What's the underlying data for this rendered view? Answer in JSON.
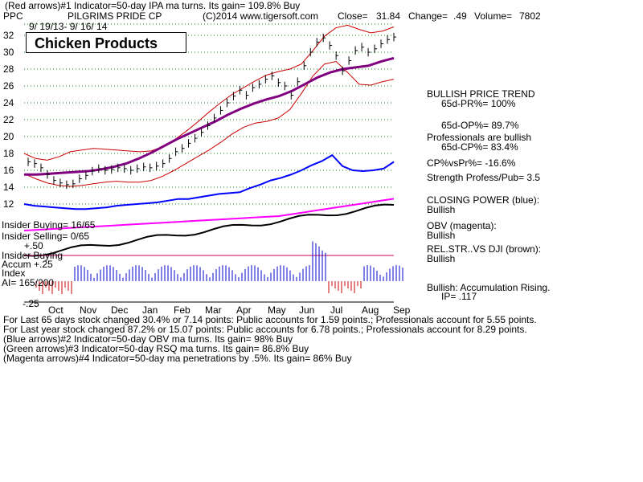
{
  "header": {
    "line1": "(Red arrows)#1 Indicator=50-day IPA ma turns. Its gain= 109.8% Buy",
    "ticker": "PPC",
    "company": "PILGRIMS PRIDE CP",
    "copyright": "(C)2014 www.tigersoft.com",
    "close_label": "Close=",
    "close_value": "31.84",
    "change_label": "Change=",
    "change_value": ".49",
    "volume_label": "Volume=",
    "volume_value": "7802",
    "date_range": "9/ 19/13- 9/ 16/ 14"
  },
  "title_box": "Chicken Products",
  "left_labels": {
    "insider_buying_count": "Insider Buying= 16/65",
    "insider_selling_count": "Insider Selling= 0/65",
    "plus50": "+.50",
    "insider_buying": "Insider Buying",
    "accum": "Accum  +.25",
    "index": "Index",
    "ai": "AI= 165/200",
    "minus25": "-.25"
  },
  "right_panel": {
    "trend": "BULLISH PRICE TREND",
    "pr": "65d-PR%= 100%",
    "op": "65d-OP%= 89.7%",
    "professionals": "Professionals are bullish",
    "cp": "65d-CP%= 83.4%",
    "cpvspr": "CP%vsPr%= -16.6%",
    "strength": "Strength Profess/Pub= 3.5",
    "closing_power": "CLOSING POWER (blue):",
    "closing_power_v": "Bullish",
    "obv": "OBV (magenta):",
    "obv_v": "Bullish",
    "relstr": "REL.STR..VS DJI (brown):",
    "relstr_v": "Bullish",
    "accum": "Bullish: Accumulation Rising.",
    "ip": "IP=  .117"
  },
  "footer": {
    "l1": "For Last 65 days stock changed  30.4% or  7.14 points:  Public accounts for  1.59 points.;  Professionals account for  5.55 points.",
    "l2": "For Last year stock changed  87.2% or  15.07 points:  Public accounts for  6.78 points.;  Professionals account for  8.29 points.",
    "l3": "(Blue arrows)#2 Indicator=50-day OBV ma turns. Its gain= 98% Buy",
    "l4": "(Green arrows)#3 Indicator=50-day RSQ ma turns. Its gain= 86.8% Buy",
    "l5": "(Magenta arrows)#4 Indicator=50-day ma penetrations by .5%. Its gain= 86% Buy"
  },
  "colors": {
    "bars": "#000000",
    "band": "#cc0000",
    "ma": "#800080",
    "closing_power": "#0000ff",
    "obv": "#ff00ff",
    "relstr": "#000000",
    "grid": "#008000",
    "accum_pos": "#0000cc",
    "accum_neg": "#cc0000",
    "insider_line": "#cc0066"
  },
  "chart_data": {
    "type": "line",
    "title": "PILGRIMS PRIDE CP",
    "x_labels": [
      "Oct",
      "Nov",
      "Dec",
      "Jan",
      "Feb",
      "Mar",
      "Apr",
      "May",
      "Jun",
      "Jul",
      "Aug",
      "Sep"
    ],
    "y_ticks": [
      12,
      14,
      16,
      18,
      20,
      22,
      24,
      26,
      28,
      30,
      32
    ],
    "ylim": [
      11,
      33
    ],
    "price_close": [
      17.0,
      16.8,
      16.3,
      15.5,
      14.8,
      14.5,
      14.3,
      14.4,
      15.0,
      15.4,
      15.9,
      16.2,
      16.0,
      16.1,
      16.3,
      16.2,
      16.0,
      16.2,
      16.4,
      16.3,
      16.5,
      16.8,
      17.4,
      18.2,
      18.6,
      19.2,
      19.8,
      20.5,
      21.3,
      22.2,
      23.1,
      24.0,
      24.8,
      25.5,
      24.9,
      25.8,
      26.2,
      26.8,
      27.2,
      26.4,
      26.0,
      24.9,
      26.5,
      28.4,
      30.0,
      31.2,
      31.7,
      30.8,
      29.6,
      27.8,
      29.0,
      30.2,
      30.6,
      30.0,
      30.4,
      31.0,
      31.5,
      31.8
    ],
    "upper_band": [
      18.0,
      17.4,
      17.2,
      17.6,
      18.2,
      18.4,
      18.6,
      18.5,
      18.4,
      18.3,
      18.2,
      18.3,
      18.8,
      19.6,
      20.6,
      21.7,
      22.9,
      24.0,
      25.0,
      25.8,
      26.6,
      27.3,
      27.7,
      28.0,
      28.6,
      30.2,
      31.9,
      32.9,
      33.2,
      32.7,
      32.3,
      32.5,
      33.0
    ],
    "lower_band": [
      15.6,
      15.0,
      14.5,
      14.2,
      14.1,
      14.2,
      14.4,
      14.6,
      14.7,
      14.6,
      14.6,
      14.8,
      15.3,
      16.0,
      16.8,
      17.6,
      18.4,
      19.3,
      20.3,
      21.1,
      21.6,
      21.8,
      22.2,
      23.2,
      25.1,
      27.2,
      28.6,
      28.9,
      27.6,
      26.2,
      26.1,
      26.5,
      26.8
    ],
    "ma50": [
      15.5,
      15.5,
      15.6,
      15.7,
      15.8,
      15.9,
      16.1,
      16.4,
      16.8,
      17.4,
      18.1,
      18.9,
      19.7,
      20.4,
      21.1,
      21.8,
      22.6,
      23.3,
      23.9,
      24.4,
      24.8,
      25.4,
      26.2,
      27.0,
      27.6,
      28.0,
      28.2,
      28.4,
      28.9,
      29.3
    ],
    "closing_power": [
      12.0,
      11.8,
      11.7,
      11.6,
      11.5,
      11.4,
      11.4,
      11.5,
      11.6,
      11.8,
      11.9,
      12.0,
      12.1,
      12.2,
      12.4,
      12.6,
      12.6,
      12.8,
      13.0,
      13.2,
      13.3,
      13.4,
      13.9,
      14.3,
      14.8,
      15.1,
      15.5,
      16.0,
      16.6,
      17.1,
      17.8,
      16.5,
      16.0,
      15.9,
      16.0,
      16.2,
      17.0
    ],
    "series_names": []
  }
}
